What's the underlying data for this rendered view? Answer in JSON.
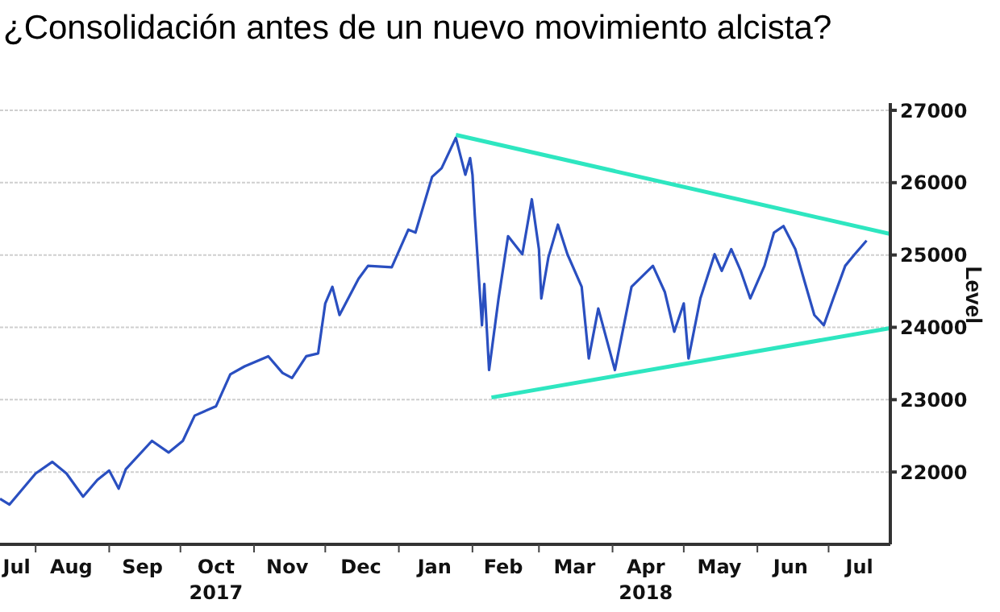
{
  "chart_data": {
    "type": "line",
    "title": "¿Consolidación antes de un nuevo movimiento alcista?",
    "ylabel": "Level",
    "x": [
      "2017-07-17",
      "2017-07-21",
      "2017-08-01",
      "2017-08-08",
      "2017-08-14",
      "2017-08-21",
      "2017-08-27",
      "2017-09-01",
      "2017-09-05",
      "2017-09-08",
      "2017-09-19",
      "2017-09-26",
      "2017-10-02",
      "2017-10-07",
      "2017-10-16",
      "2017-10-22",
      "2017-10-28",
      "2017-11-07",
      "2017-11-13",
      "2017-11-17",
      "2017-11-23",
      "2017-11-28",
      "2017-12-01",
      "2017-12-04",
      "2017-12-07",
      "2017-12-15",
      "2017-12-19",
      "2017-12-29",
      "2018-01-05",
      "2018-01-08",
      "2018-01-15",
      "2018-01-19",
      "2018-01-25",
      "2018-01-29",
      "2018-01-31",
      "2018-02-01",
      "2018-02-02",
      "2018-02-05",
      "2018-02-06",
      "2018-02-08",
      "2018-02-12",
      "2018-02-16",
      "2018-02-22",
      "2018-02-26",
      "2018-03-01",
      "2018-03-02",
      "2018-03-05",
      "2018-03-09",
      "2018-03-13",
      "2018-03-19",
      "2018-03-22",
      "2018-03-26",
      "2018-04-02",
      "2018-04-09",
      "2018-04-18",
      "2018-04-23",
      "2018-04-27",
      "2018-05-01",
      "2018-05-03",
      "2018-05-08",
      "2018-05-14",
      "2018-05-17",
      "2018-05-21",
      "2018-05-25",
      "2018-05-29",
      "2018-06-04",
      "2018-06-08",
      "2018-06-12",
      "2018-06-17",
      "2018-06-21",
      "2018-06-25",
      "2018-06-29",
      "2018-07-03",
      "2018-07-08",
      "2018-07-12",
      "2018-07-17"
    ],
    "series": [
      {
        "color": "#2a4fc0",
        "values": [
          21630,
          21550,
          21980,
          22140,
          21980,
          21660,
          21890,
          22020,
          21770,
          22040,
          22430,
          22270,
          22430,
          22780,
          22910,
          23350,
          23460,
          23600,
          23370,
          23300,
          23600,
          23640,
          24330,
          24560,
          24170,
          24670,
          24850,
          24830,
          25350,
          25310,
          26080,
          26200,
          26620,
          26110,
          26340,
          26110,
          25540,
          24030,
          24600,
          23410,
          24400,
          25260,
          25010,
          25770,
          25080,
          24400,
          24970,
          25420,
          25010,
          24560,
          23570,
          24260,
          23410,
          24560,
          24850,
          24490,
          23940,
          24330,
          23570,
          24400,
          25010,
          24780,
          25080,
          24780,
          24400,
          24850,
          25310,
          25400,
          25080,
          24620,
          24170,
          24030,
          24400,
          24850,
          25010,
          25200
        ]
      },
      {
        "color": "#2ee6c0",
        "x": [
          "2018-01-25",
          "2018-07-27"
        ],
        "values": [
          26660,
          25290
        ]
      },
      {
        "color": "#2ee6c0",
        "x": [
          "2018-02-09",
          "2018-07-27"
        ],
        "values": [
          23030,
          23990
        ]
      }
    ],
    "xlim": [
      "2017-07-17",
      "2018-07-27"
    ],
    "xticks": [
      {
        "value": "2017-07-24",
        "label": "Jul"
      },
      {
        "value": "2017-08-01",
        "label": null
      },
      {
        "value": "2017-08-16",
        "label": "Aug"
      },
      {
        "value": "2017-09-01",
        "label": null
      },
      {
        "value": "2017-09-15",
        "label": "Sep"
      },
      {
        "value": "2017-10-01",
        "label": null
      },
      {
        "value": "2017-10-16",
        "label": "Oct\n2017"
      },
      {
        "value": "2017-11-01",
        "label": null
      },
      {
        "value": "2017-11-15",
        "label": "Nov"
      },
      {
        "value": "2017-12-01",
        "label": null
      },
      {
        "value": "2017-12-16",
        "label": "Dec"
      },
      {
        "value": "2018-01-01",
        "label": null
      },
      {
        "value": "2018-01-16",
        "label": "Jan"
      },
      {
        "value": "2018-02-01",
        "label": null
      },
      {
        "value": "2018-02-14",
        "label": "Feb"
      },
      {
        "value": "2018-03-01",
        "label": null
      },
      {
        "value": "2018-03-16",
        "label": "Mar"
      },
      {
        "value": "2018-04-01",
        "label": null
      },
      {
        "value": "2018-04-15",
        "label": "Apr\n2018"
      },
      {
        "value": "2018-05-01",
        "label": null
      },
      {
        "value": "2018-05-16",
        "label": "May"
      },
      {
        "value": "2018-06-01",
        "label": null
      },
      {
        "value": "2018-06-15",
        "label": "Jun"
      },
      {
        "value": "2018-07-01",
        "label": null
      },
      {
        "value": "2018-07-14",
        "label": "Jul"
      }
    ],
    "ylim": [
      21000,
      27100
    ],
    "yticks": [
      22000,
      23000,
      24000,
      25000,
      26000,
      27000
    ],
    "grid": true,
    "marker": "none",
    "line_style": "solid"
  }
}
